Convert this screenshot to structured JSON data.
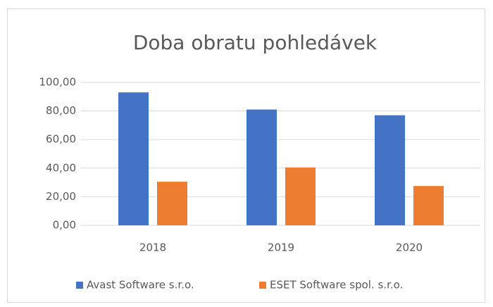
{
  "chart_data": {
    "type": "bar",
    "title": "Doba obratu pohledávek",
    "categories": [
      "2018",
      "2019",
      "2020"
    ],
    "series": [
      {
        "name": "Avast Software s.r.o.",
        "color": "#4472c4",
        "values": [
          93,
          81,
          77
        ]
      },
      {
        "name": "ESET Software spol. s.r.o.",
        "color": "#ed7d31",
        "values": [
          30.5,
          40.5,
          27.5
        ]
      }
    ],
    "ylim": [
      0,
      100
    ],
    "yticks": [
      {
        "value": 0,
        "label": "0,00"
      },
      {
        "value": 20,
        "label": "20,00"
      },
      {
        "value": 40,
        "label": "40,00"
      },
      {
        "value": 60,
        "label": "60,00"
      },
      {
        "value": 80,
        "label": "80,00"
      },
      {
        "value": 100,
        "label": "100,00"
      }
    ],
    "grid": true,
    "legend": "bottom"
  }
}
